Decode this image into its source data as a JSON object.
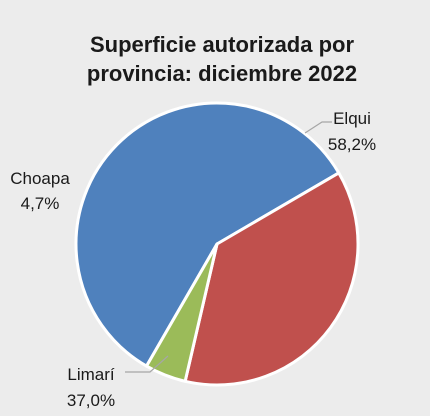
{
  "chart_data": {
    "type": "pie",
    "title_lines": [
      "Superficie autorizada por",
      "provincia: diciembre 2022"
    ],
    "slices": [
      {
        "name": "Elqui",
        "value": 58.2,
        "value_label": "58,2%",
        "color": "#4f81bd"
      },
      {
        "name": "Limarí",
        "value": 37.0,
        "value_label": "37,0%",
        "color": "#c0504d"
      },
      {
        "name": "Choapa",
        "value": 4.7,
        "value_label": "4,7%",
        "color": "#9bbb59"
      }
    ],
    "legend": "none",
    "labels": "outside with leader lines"
  }
}
